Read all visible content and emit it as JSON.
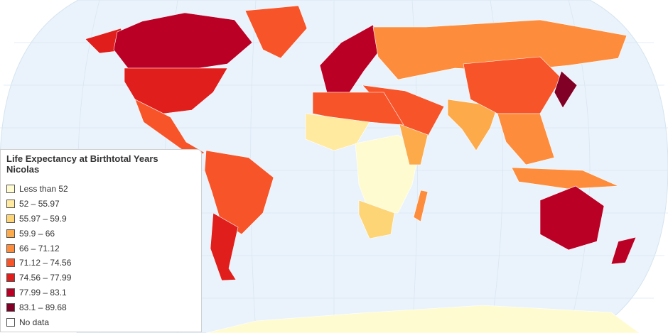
{
  "legend": {
    "title": [
      "Life Expectancy at Birthtotal Years",
      "Nicolas"
    ],
    "items": [
      {
        "label": "Less than 52",
        "color": "#fffbd0"
      },
      {
        "label": "52 – 55.97",
        "color": "#ffeaa0"
      },
      {
        "label": "55.97 – 59.9",
        "color": "#fed576"
      },
      {
        "label": "59.9 – 66",
        "color": "#fdaa4a"
      },
      {
        "label": "66 – 71.12",
        "color": "#fd8d3c"
      },
      {
        "label": "71.12 – 74.56",
        "color": "#f7542a"
      },
      {
        "label": "74.56 – 77.99",
        "color": "#e01e1c"
      },
      {
        "label": "77.99 – 83.1",
        "color": "#bb0026"
      },
      {
        "label": "83.1 – 89.68",
        "color": "#800026"
      },
      {
        "label": "No data",
        "color": "#ffffff"
      }
    ]
  }
}
